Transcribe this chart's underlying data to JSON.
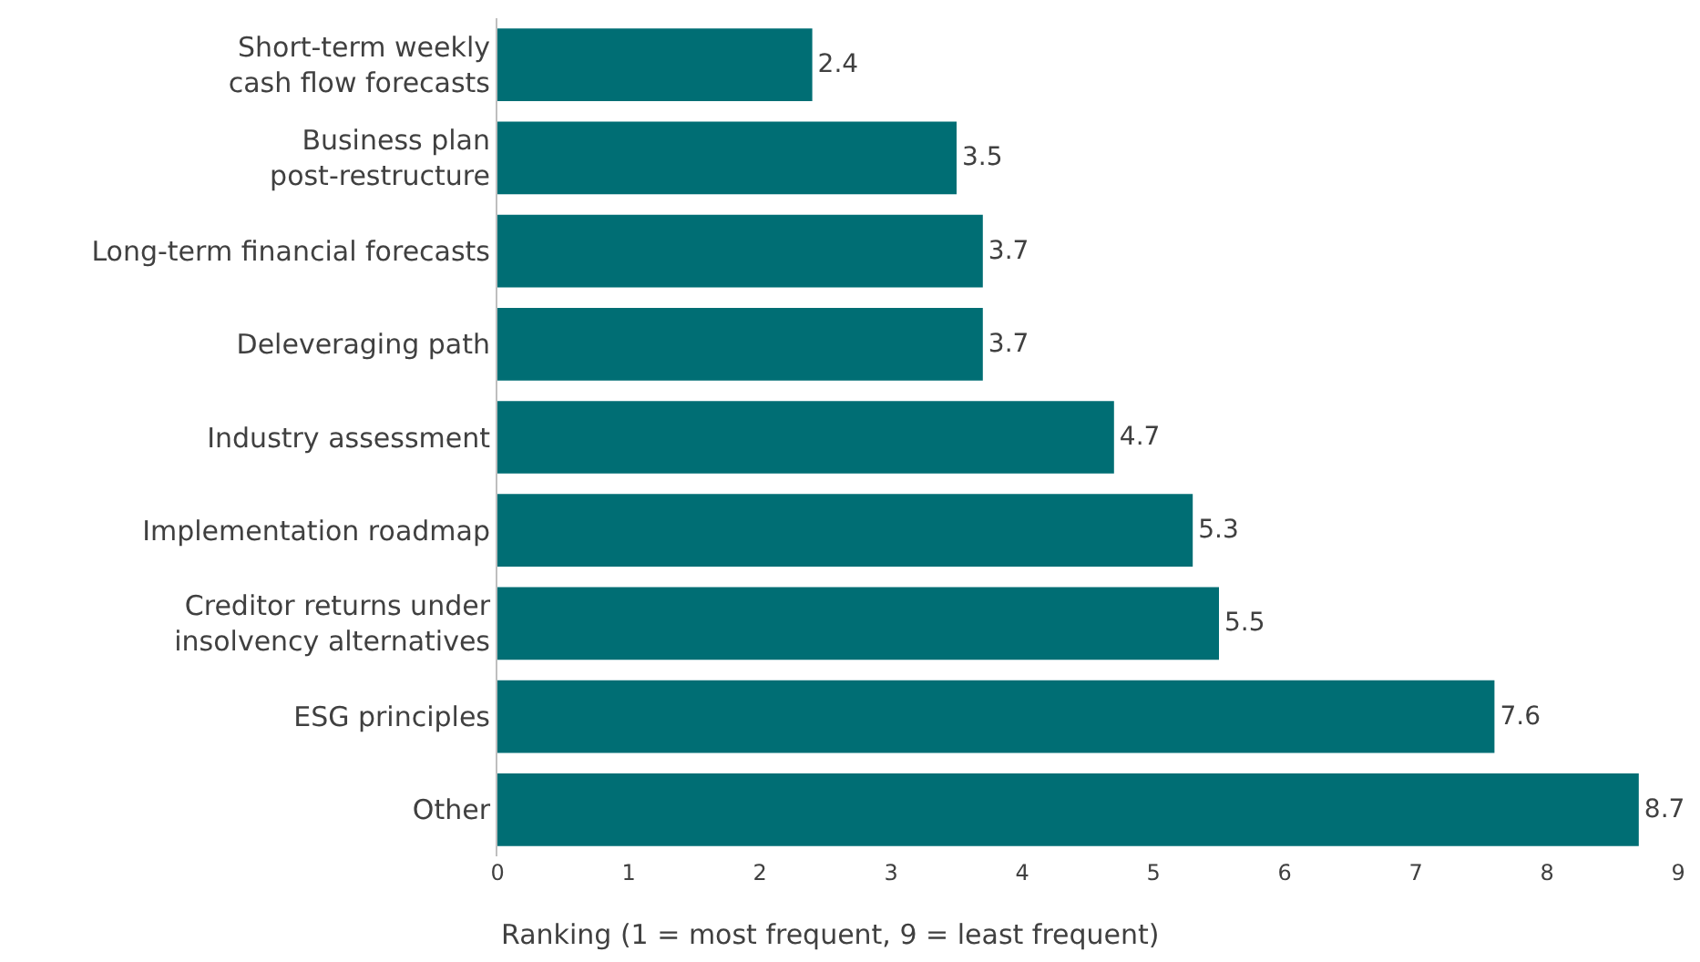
{
  "chart_data": {
    "type": "bar",
    "orientation": "horizontal",
    "categories": [
      "Short-term weekly\ncash flow forecasts",
      "Business plan\npost-restructure",
      "Long-term financial forecasts",
      "Deleveraging path",
      "Industry assessment",
      "Implementation roadmap",
      "Creditor returns under\ninsolvency alternatives",
      "ESG principles",
      "Other"
    ],
    "values": [
      2.4,
      3.5,
      3.7,
      3.7,
      4.7,
      5.3,
      5.5,
      7.6,
      8.7
    ],
    "color": "#006e74",
    "xlabel": "Ranking (1 = most frequent, 9 = least frequent)",
    "xlim": [
      0,
      9
    ],
    "xticks": [
      0,
      1,
      2,
      3,
      4,
      5,
      6,
      7,
      8,
      9
    ],
    "data_labels": true
  }
}
